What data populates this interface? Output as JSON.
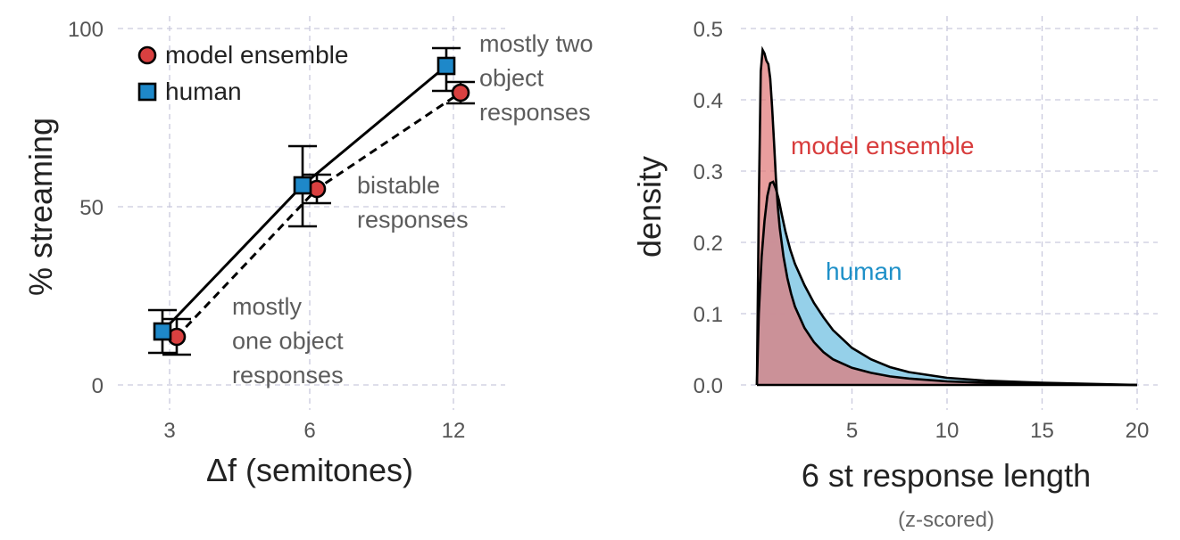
{
  "chart_data": [
    {
      "type": "line",
      "xlabel": "Δf (semitones)",
      "ylabel": "% streaming",
      "categories": [
        "3",
        "6",
        "12"
      ],
      "ylim": [
        -7,
        103
      ],
      "yticks": [
        0,
        50,
        100
      ],
      "grid": true,
      "legend_position": "top-left",
      "series": [
        {
          "name": "model ensemble",
          "marker": "circle",
          "color": "#d94040",
          "line_style": "dashed",
          "values": [
            13.5,
            55,
            82
          ],
          "error_low": [
            8.5,
            51,
            79
          ],
          "error_high": [
            18.5,
            59,
            85
          ]
        },
        {
          "name": "human",
          "marker": "square",
          "color": "#1e88c9",
          "line_style": "solid",
          "values": [
            15,
            56,
            89.5
          ],
          "error_low": [
            9,
            44.5,
            82.5
          ],
          "error_high": [
            21,
            67,
            94.5
          ]
        }
      ],
      "annotations": [
        {
          "lines": [
            "mostly two",
            "object",
            "responses"
          ],
          "near": "12"
        },
        {
          "lines": [
            "bistable",
            "responses"
          ],
          "near": "6"
        },
        {
          "lines": [
            "mostly",
            "one object",
            "responses"
          ],
          "near": "3"
        }
      ]
    },
    {
      "type": "area",
      "xlabel": "6 st response length",
      "xlabel_sub": "(z-scored)",
      "ylabel": "density",
      "xlim": [
        -0.5,
        20.6
      ],
      "ylim": [
        -0.01,
        0.52
      ],
      "xticks": [
        5,
        10,
        15,
        20
      ],
      "yticks": [
        0.0,
        0.1,
        0.2,
        0.3,
        0.4,
        0.5
      ],
      "ytick_labels": [
        "0.0",
        "0.1",
        "0.2",
        "0.3",
        "0.4",
        "0.5"
      ],
      "grid": true,
      "series": [
        {
          "name": "human",
          "color": "#1e90c8",
          "fill": "#8fcde8",
          "x": [
            0.0,
            0.1,
            0.25,
            0.4,
            0.55,
            0.7,
            0.85,
            1.0,
            1.15,
            1.3,
            1.5,
            1.75,
            2.0,
            2.5,
            3.0,
            3.5,
            4.0,
            5.0,
            6.0,
            7.0,
            8.0,
            10.0,
            12.0,
            15.0,
            20.0
          ],
          "y": [
            0.0,
            0.1,
            0.18,
            0.23,
            0.265,
            0.283,
            0.285,
            0.275,
            0.26,
            0.24,
            0.215,
            0.19,
            0.17,
            0.14,
            0.115,
            0.095,
            0.077,
            0.052,
            0.036,
            0.025,
            0.018,
            0.01,
            0.006,
            0.003,
            0.0
          ]
        },
        {
          "name": "model ensemble",
          "color": "#d83c3c",
          "fill": "#e07878",
          "x": [
            0.0,
            0.1,
            0.2,
            0.3,
            0.4,
            0.5,
            0.6,
            0.7,
            0.8,
            0.9,
            1.0,
            1.1,
            1.2,
            1.4,
            1.6,
            1.8,
            2.0,
            2.5,
            3.0,
            3.5,
            4.0,
            5.0,
            6.0,
            7.0,
            8.0,
            10.0,
            12.0,
            15.0,
            20.0
          ],
          "y": [
            0.0,
            0.25,
            0.44,
            0.47,
            0.465,
            0.455,
            0.45,
            0.43,
            0.39,
            0.34,
            0.29,
            0.25,
            0.22,
            0.18,
            0.15,
            0.128,
            0.11,
            0.08,
            0.06,
            0.046,
            0.036,
            0.024,
            0.017,
            0.012,
            0.009,
            0.005,
            0.003,
            0.001,
            0.0
          ]
        }
      ],
      "labels": [
        {
          "text": "model ensemble",
          "color": "#d83c3c"
        },
        {
          "text": "human",
          "color": "#1e90c8"
        }
      ]
    }
  ]
}
